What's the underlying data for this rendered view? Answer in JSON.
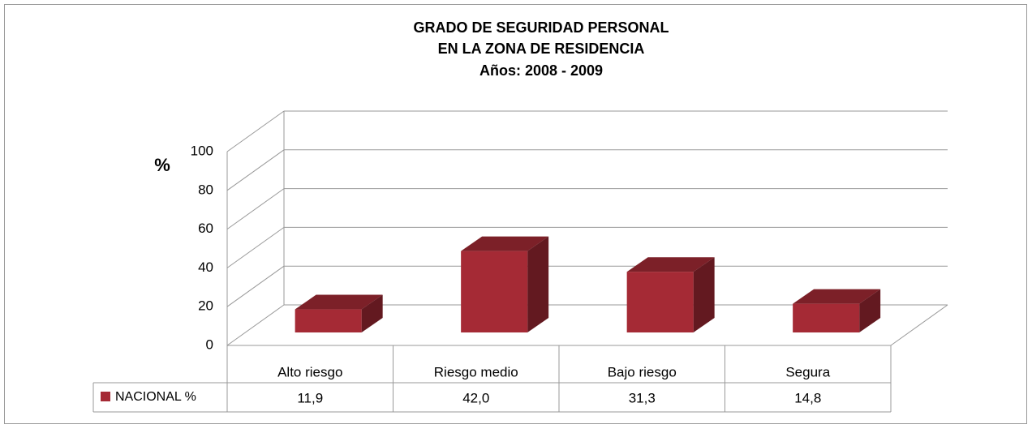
{
  "chart_data": {
    "type": "bar3d",
    "title": [
      "GRADO DE  SEGURIDAD PERSONAL",
      "EN LA ZONA DE RESIDENCIA",
      "Años: 2008  - 2009"
    ],
    "ylabel": "%",
    "categories": [
      "Alto  riesgo",
      "Riesgo  medio",
      "Bajo  riesgo",
      "Segura"
    ],
    "series": [
      {
        "name": "NACIONAL %",
        "color": "#a52a35",
        "values": [
          11.9,
          42.0,
          31.3,
          14.8
        ],
        "value_labels": [
          "11,9",
          "42,0",
          "31,3",
          "14,8"
        ]
      }
    ],
    "ylim": [
      0,
      100
    ],
    "yticks": [
      0,
      20,
      40,
      60,
      80,
      100
    ],
    "grid": true
  }
}
